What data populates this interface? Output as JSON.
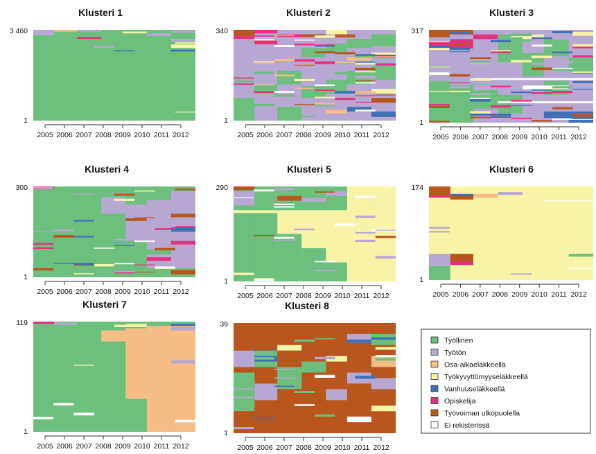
{
  "states": [
    {
      "key": "tyollinen",
      "label": "Työllinen",
      "color": "#6dbf7e"
    },
    {
      "key": "tyoton",
      "label": "Työtön",
      "color": "#b7a7d3"
    },
    {
      "key": "osa",
      "label": "Osa-aikaeläkkeellä",
      "color": "#f6bd86"
    },
    {
      "key": "tyokyvyttomyys",
      "label": "Työkyvyttömyyseläkkeellä",
      "color": "#f7f4a8"
    },
    {
      "key": "vanhuus",
      "label": "Vanhuuseläkkeellä",
      "color": "#3f6fb5"
    },
    {
      "key": "opiskelija",
      "label": "Opiskelija",
      "color": "#e3317f"
    },
    {
      "key": "ulkopuolella",
      "label": "Työvoiman ulkopuolella",
      "color": "#b8561d"
    },
    {
      "key": "ei",
      "label": "Ei rekisterissä",
      "color": "#ffffff"
    }
  ],
  "chart_data": [
    {
      "type": "sequence-index",
      "title": "Klusteri  1",
      "years": [
        "2005",
        "2006",
        "2007",
        "2008",
        "2009",
        "2010",
        "2011",
        "2012"
      ],
      "ytop": "3 460",
      "ybottom": "1",
      "dominant": "tyollinen",
      "base": "tyollinen"
    },
    {
      "type": "sequence-index",
      "title": "Klusteri 2",
      "years": [
        "2005",
        "2006",
        "2007",
        "2008",
        "2009",
        "2010",
        "2011",
        "2012"
      ],
      "ytop": "340",
      "ybottom": "1",
      "dominant": "tyoton",
      "base": "tyoton"
    },
    {
      "type": "sequence-index",
      "title": "Klusteri  3",
      "years": [
        "2005",
        "2006",
        "2007",
        "2008",
        "2009",
        "2010",
        "2011",
        "2012"
      ],
      "ytop": "317",
      "ybottom": "1",
      "dominant": "mixed",
      "base": "tyoton"
    },
    {
      "type": "sequence-index",
      "title": "Klusteri  4",
      "years": [
        "2005",
        "2006",
        "2007",
        "2008",
        "2009",
        "2010",
        "2011",
        "2012"
      ],
      "ytop": "300",
      "ybottom": "1",
      "dominant": "tyollinen → tyoton",
      "base": "tyollinen"
    },
    {
      "type": "sequence-index",
      "title": "Klusteri  5",
      "years": [
        "2005",
        "2006",
        "2007",
        "2008",
        "2009",
        "2010",
        "2011",
        "2012"
      ],
      "ytop": "290",
      "ybottom": "1",
      "dominant": "tyollinen → tyokyvyttomyys",
      "base": "tyollinen"
    },
    {
      "type": "sequence-index",
      "title": "Klusteri  6",
      "years": [
        "2005",
        "2006",
        "2007",
        "2008",
        "2009",
        "2010",
        "2011",
        "2012"
      ],
      "ytop": "174",
      "ybottom": "1",
      "dominant": "tyokyvyttomyys",
      "base": "tyokyvyttomyys"
    },
    {
      "type": "sequence-index",
      "title": "Klusteri  7",
      "years": [
        "2005",
        "2006",
        "2007",
        "2008",
        "2009",
        "2010",
        "2011",
        "2012"
      ],
      "ytop": "119",
      "ybottom": "1",
      "dominant": "tyollinen → osa",
      "base": "tyollinen"
    },
    {
      "type": "sequence-index",
      "title": "Klusteri  8",
      "years": [
        "2005",
        "2006",
        "2007",
        "2008",
        "2009",
        "2010",
        "2011",
        "2012"
      ],
      "ytop": "39",
      "ybottom": "1",
      "dominant": "ulkopuolella",
      "base": "ulkopuolella"
    }
  ]
}
